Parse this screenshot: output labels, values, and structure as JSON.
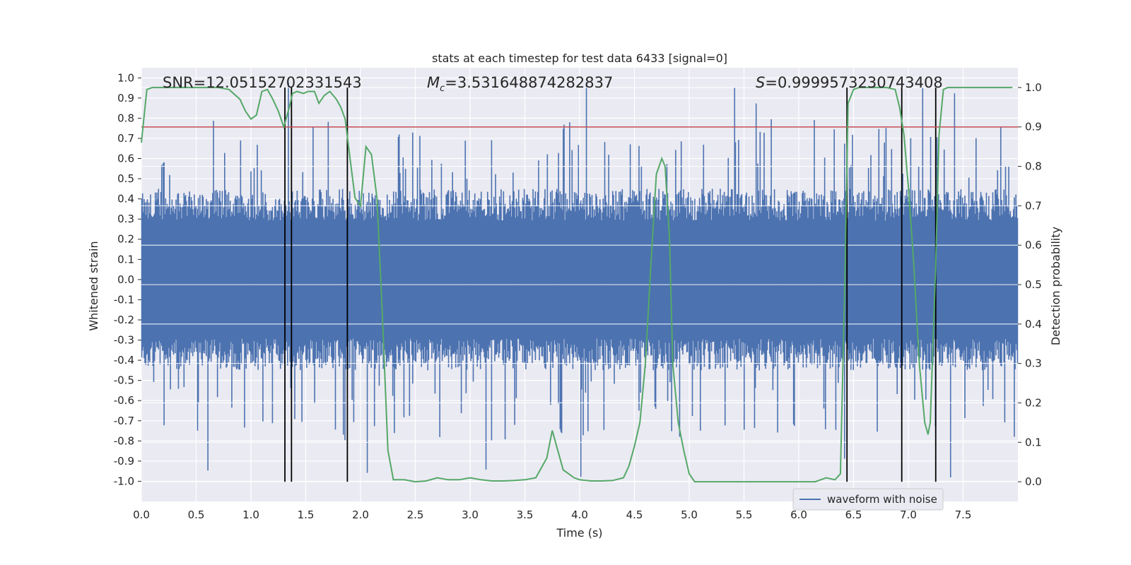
{
  "chart_data": {
    "type": "line",
    "title": "stats at each timestep for test data 6433 [signal=0]",
    "xlabel": "Time (s)",
    "ylabel_left": "Whitened strain",
    "ylabel_right": "Detection probability",
    "xlim": [
      0.0,
      8.0
    ],
    "ylim_left": [
      -1.1,
      1.05
    ],
    "ylim_right": [
      -0.05,
      1.05
    ],
    "grid": true,
    "x_ticks": [
      "0.0",
      "0.5",
      "1.0",
      "1.5",
      "2.0",
      "2.5",
      "3.0",
      "3.5",
      "4.0",
      "4.5",
      "5.0",
      "5.5",
      "6.0",
      "6.5",
      "7.0",
      "7.5"
    ],
    "x_tick_values": [
      0.0,
      0.5,
      1.0,
      1.5,
      2.0,
      2.5,
      3.0,
      3.5,
      4.0,
      4.5,
      5.0,
      5.5,
      6.0,
      6.5,
      7.0,
      7.5
    ],
    "y_left_ticks": [
      "1.0",
      "0.9",
      "0.8",
      "0.7",
      "0.6",
      "0.5",
      "0.4",
      "0.3",
      "0.2",
      "0.1",
      "0.0",
      "-0.1",
      "-0.2",
      "-0.3",
      "-0.4",
      "-0.5",
      "-0.6",
      "-0.7",
      "-0.8",
      "-0.9",
      "-1.0"
    ],
    "y_left_tick_values": [
      1.0,
      0.9,
      0.8,
      0.7,
      0.6,
      0.5,
      0.4,
      0.3,
      0.2,
      0.1,
      0.0,
      -0.1,
      -0.2,
      -0.3,
      -0.4,
      -0.5,
      -0.6,
      -0.7,
      -0.8,
      -0.9,
      -1.0
    ],
    "y_right_ticks": [
      "1.0",
      "0.9",
      "0.8",
      "0.7",
      "0.6",
      "0.5",
      "0.4",
      "0.3",
      "0.2",
      "0.1",
      "0.0"
    ],
    "y_right_tick_values": [
      1.0,
      0.9,
      0.8,
      0.7,
      0.6,
      0.5,
      0.4,
      0.3,
      0.2,
      0.1,
      0.0
    ],
    "annotations": {
      "snr": "SNR=12.05152702331543",
      "mc_symbol": "M",
      "mc_subscript": "c",
      "mc_value": "=3.531648874282837",
      "s_symbol": "S",
      "s_value": "=0.9999573230743408"
    },
    "legend": {
      "label": "waveform with noise",
      "location": "lower-right"
    },
    "threshold": {
      "value": 0.9,
      "axis": "right",
      "color": "#c44e52"
    },
    "vertical_lines": [
      1.31,
      1.37,
      1.88,
      6.44,
      6.94,
      7.25
    ],
    "waveform": {
      "name": "waveform with noise",
      "color": "#4c72b0",
      "duration": 8.0,
      "typical_range": [
        -0.45,
        0.45
      ],
      "max_abs": 1.0
    },
    "probability_series": {
      "name": "Detection probability",
      "color": "#55a868",
      "x": [
        0.0,
        0.05,
        0.1,
        0.2,
        0.3,
        0.4,
        0.5,
        0.6,
        0.7,
        0.8,
        0.9,
        0.95,
        1.0,
        1.05,
        1.1,
        1.15,
        1.2,
        1.25,
        1.3,
        1.35,
        1.38,
        1.42,
        1.48,
        1.52,
        1.58,
        1.62,
        1.67,
        1.72,
        1.78,
        1.82,
        1.86,
        1.9,
        1.95,
        2.0,
        2.05,
        2.1,
        2.15,
        2.2,
        2.25,
        2.3,
        2.4,
        2.5,
        2.6,
        2.7,
        2.8,
        2.9,
        3.0,
        3.1,
        3.2,
        3.3,
        3.4,
        3.5,
        3.6,
        3.7,
        3.75,
        3.8,
        3.85,
        3.9,
        3.95,
        4.0,
        4.1,
        4.2,
        4.3,
        4.4,
        4.45,
        4.5,
        4.55,
        4.6,
        4.65,
        4.7,
        4.75,
        4.78,
        4.82,
        4.85,
        4.9,
        4.95,
        5.0,
        5.05,
        5.1,
        5.2,
        5.4,
        5.6,
        5.8,
        6.0,
        6.15,
        6.25,
        6.33,
        6.38,
        6.42,
        6.45,
        6.5,
        6.55,
        6.6,
        6.7,
        6.8,
        6.88,
        6.92,
        6.96,
        7.0,
        7.05,
        7.1,
        7.15,
        7.18,
        7.2,
        7.25,
        7.28,
        7.32,
        7.36,
        7.45,
        7.6,
        7.8,
        7.95
      ],
      "y": [
        0.86,
        0.995,
        1.0,
        1.0,
        1.0,
        1.0,
        1.0,
        1.0,
        1.0,
        0.995,
        0.97,
        0.94,
        0.92,
        0.93,
        0.99,
        0.995,
        0.97,
        0.94,
        0.9,
        0.95,
        0.985,
        0.99,
        0.985,
        0.99,
        0.99,
        0.96,
        0.98,
        0.99,
        0.97,
        0.95,
        0.92,
        0.83,
        0.72,
        0.7,
        0.85,
        0.83,
        0.72,
        0.42,
        0.08,
        0.005,
        0.005,
        0.0,
        0.002,
        0.01,
        0.005,
        0.005,
        0.01,
        0.005,
        0.002,
        0.002,
        0.003,
        0.005,
        0.01,
        0.06,
        0.13,
        0.08,
        0.03,
        0.02,
        0.01,
        0.005,
        0.002,
        0.002,
        0.003,
        0.01,
        0.04,
        0.09,
        0.15,
        0.3,
        0.55,
        0.78,
        0.82,
        0.8,
        0.62,
        0.3,
        0.15,
        0.08,
        0.02,
        0.0,
        0.0,
        0.0,
        0.0,
        0.0,
        0.0,
        0.0,
        0.0,
        0.01,
        0.005,
        0.02,
        0.5,
        0.96,
        0.995,
        1.0,
        1.0,
        1.0,
        1.0,
        0.995,
        0.95,
        0.88,
        0.75,
        0.55,
        0.3,
        0.15,
        0.12,
        0.15,
        0.55,
        0.88,
        0.995,
        1.0,
        1.0,
        1.0,
        1.0,
        1.0
      ]
    }
  }
}
